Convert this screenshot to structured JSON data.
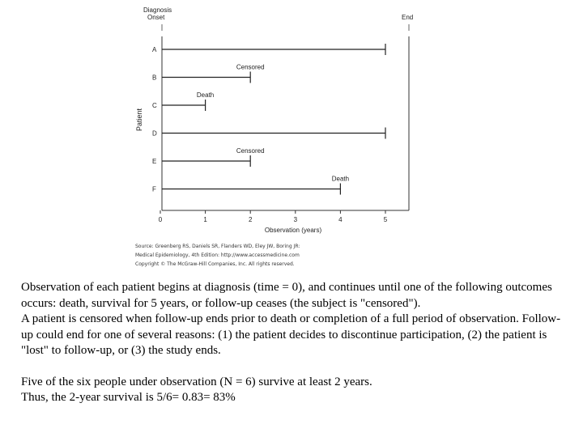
{
  "chart_data": {
    "type": "timeline",
    "header_left": [
      "Diagnosis",
      "Onset"
    ],
    "header_right": "End",
    "ylabel": "Patient",
    "xlabel": "Observation (years)",
    "xlim": [
      0,
      5
    ],
    "ticks": [
      "0",
      "1",
      "2",
      "3",
      "4",
      "5"
    ],
    "patients": [
      {
        "label": "A",
        "end": 5,
        "event": ""
      },
      {
        "label": "B",
        "end": 2,
        "event": "Censored"
      },
      {
        "label": "C",
        "end": 1,
        "event": "Death"
      },
      {
        "label": "D",
        "end": 5,
        "event": ""
      },
      {
        "label": "E",
        "end": 2,
        "event": "Censored"
      },
      {
        "label": "F",
        "end": 4,
        "event": "Death"
      }
    ]
  },
  "source": {
    "line1": "Source: Greenberg RS, Daniels SR, Flanders WD, Eley JW, Boring JR:",
    "line2": "Medical Epidemiology, 4th Edition: http://www.accessmedicine.com",
    "line3": "Copyright © The McGraw-Hill Companies, Inc. All rights reserved."
  },
  "text": {
    "p1": "Observation of each patient begins at diagnosis (time = 0), and continues until one of the following outcomes occurs: death, survival for 5 years, or follow-up ceases (the subject is \"censored\").",
    "p2": "A patient is censored when follow-up ends prior to death or completion of a full period of observation. Follow-up could end for one of several reasons: (1) the patient decides to discontinue participation, (2) the patient is \"lost\" to follow-up, or (3) the study ends.",
    "p3": "Five of the six people under observation (N = 6) survive at least 2 years.",
    "p4": "Thus, the 2-year survival is 5/6=  0.83=         83%"
  }
}
